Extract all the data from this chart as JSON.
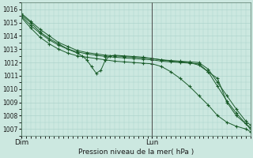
{
  "xlabel": "Pression niveau de la mer( hPa )",
  "background_color": "#cce8e0",
  "grid_color": "#a8d0c8",
  "line_color": "#1a5c2a",
  "ylim": [
    1006.5,
    1016.5
  ],
  "yticks": [
    1007,
    1008,
    1009,
    1010,
    1011,
    1012,
    1013,
    1014,
    1015,
    1016
  ],
  "xlim": [
    0,
    49
  ],
  "dim_x": 0,
  "lun_x": 28,
  "xtick_positions": [
    0,
    28
  ],
  "xtick_labels": [
    "Dim",
    "Lun"
  ],
  "series": [
    {
      "x": [
        0,
        2,
        4,
        6,
        8,
        10,
        12,
        14,
        16,
        18,
        20,
        22,
        24,
        26,
        28,
        30,
        32,
        34,
        36,
        38,
        40,
        42,
        44,
        46,
        48,
        49
      ],
      "y": [
        1015.7,
        1015.1,
        1014.5,
        1014.0,
        1013.5,
        1013.2,
        1012.9,
        1012.75,
        1012.65,
        1012.55,
        1012.5,
        1012.45,
        1012.4,
        1012.35,
        1012.3,
        1012.2,
        1012.15,
        1012.1,
        1012.05,
        1012.0,
        1011.5,
        1010.5,
        1009.5,
        1008.5,
        1007.6,
        1007.3
      ]
    },
    {
      "x": [
        0,
        2,
        4,
        6,
        8,
        10,
        12,
        14,
        16,
        18,
        20,
        22,
        24,
        26,
        28,
        30,
        32,
        34,
        36,
        38,
        40,
        42,
        44,
        46,
        48,
        49
      ],
      "y": [
        1015.5,
        1014.8,
        1014.2,
        1013.7,
        1013.3,
        1013.0,
        1012.8,
        1012.65,
        1012.55,
        1012.45,
        1012.4,
        1012.35,
        1012.3,
        1012.25,
        1012.2,
        1012.1,
        1012.05,
        1012.0,
        1011.95,
        1011.9,
        1011.3,
        1010.2,
        1009.1,
        1008.2,
        1007.4,
        1007.1
      ]
    },
    {
      "x": [
        0,
        2,
        4,
        6,
        8,
        10,
        12,
        13,
        14,
        15,
        16,
        17,
        18,
        19,
        20,
        22,
        24,
        26,
        28,
        30,
        32,
        34,
        36,
        38,
        40,
        42,
        44,
        46,
        48,
        49
      ],
      "y": [
        1015.6,
        1015.0,
        1014.3,
        1013.8,
        1013.4,
        1013.0,
        1012.7,
        1012.5,
        1012.2,
        1011.7,
        1011.2,
        1011.4,
        1012.2,
        1012.5,
        1012.55,
        1012.5,
        1012.45,
        1012.4,
        1012.3,
        1012.2,
        1012.1,
        1012.05,
        1012.0,
        1011.8,
        1011.3,
        1010.8,
        1009.0,
        1008.0,
        1007.4,
        1007.0
      ]
    },
    {
      "x": [
        0,
        2,
        4,
        6,
        8,
        10,
        12,
        14,
        16,
        18,
        20,
        22,
        24,
        26,
        28,
        30,
        32,
        34,
        36,
        38,
        40,
        42,
        44,
        46,
        48,
        49
      ],
      "y": [
        1015.4,
        1014.6,
        1013.9,
        1013.4,
        1013.0,
        1012.7,
        1012.5,
        1012.4,
        1012.3,
        1012.2,
        1012.1,
        1012.05,
        1012.0,
        1011.95,
        1011.9,
        1011.7,
        1011.3,
        1010.8,
        1010.2,
        1009.5,
        1008.8,
        1008.0,
        1007.5,
        1007.2,
        1007.0,
        1006.8
      ]
    }
  ]
}
